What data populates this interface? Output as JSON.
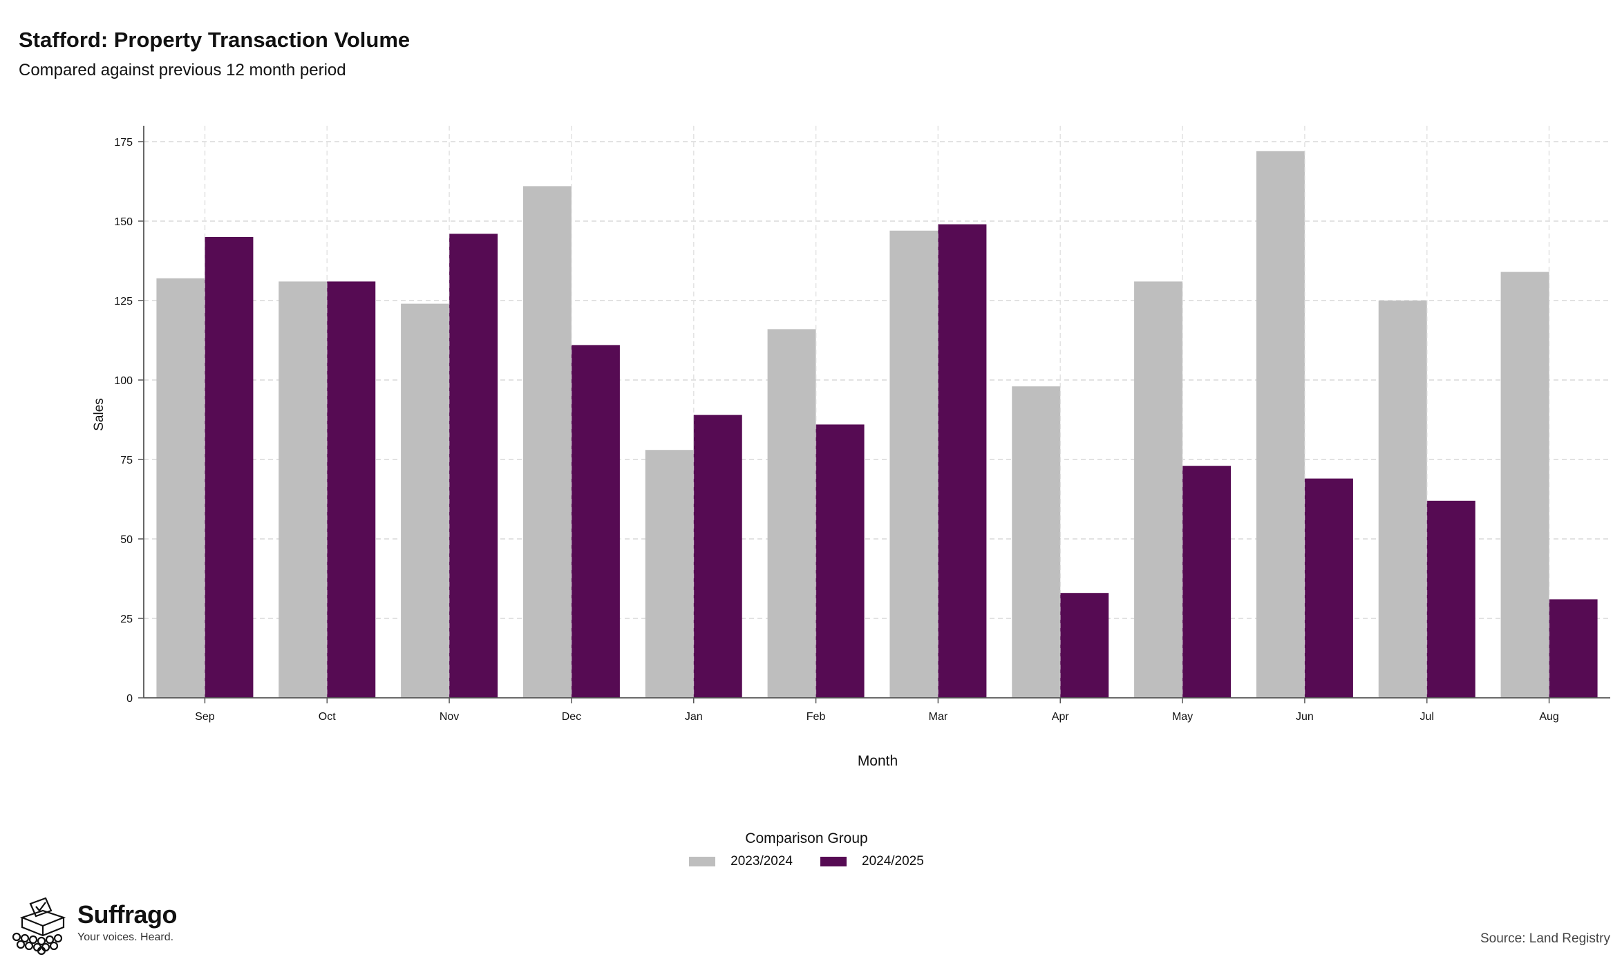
{
  "header": {
    "title": "Stafford: Property Transaction Volume",
    "subtitle": "Compared against previous 12 month period"
  },
  "chart_data": {
    "type": "bar",
    "title": "Stafford: Property Transaction Volume",
    "subtitle": "Compared against previous 12 month period",
    "xlabel": "Month",
    "ylabel": "Sales",
    "categories": [
      "Sep",
      "Oct",
      "Nov",
      "Dec",
      "Jan",
      "Feb",
      "Mar",
      "Apr",
      "May",
      "Jun",
      "Jul",
      "Aug"
    ],
    "series": [
      {
        "name": "2023/2024",
        "color": "#bebebe",
        "values": [
          132,
          131,
          124,
          161,
          78,
          116,
          147,
          98,
          131,
          172,
          125,
          134
        ]
      },
      {
        "name": "2024/2025",
        "color": "#560b53",
        "values": [
          145,
          131,
          146,
          111,
          89,
          86,
          149,
          33,
          73,
          69,
          62,
          31
        ]
      }
    ],
    "ylim": [
      0,
      180
    ],
    "yticks": [
      0,
      25,
      50,
      75,
      100,
      125,
      150,
      175
    ],
    "grid": true,
    "legend_title": "Comparison Group",
    "legend_position": "bottom"
  },
  "legend": {
    "title": "Comparison Group",
    "items": [
      {
        "label": "2023/2024",
        "color": "#bebebe"
      },
      {
        "label": "2024/2025",
        "color": "#560b53"
      }
    ]
  },
  "brand": {
    "name": "Suffrago",
    "tagline": "Your voices. Heard.",
    "icon": "ballot-box-icon"
  },
  "footer": {
    "source": "Source: Land Registry"
  }
}
